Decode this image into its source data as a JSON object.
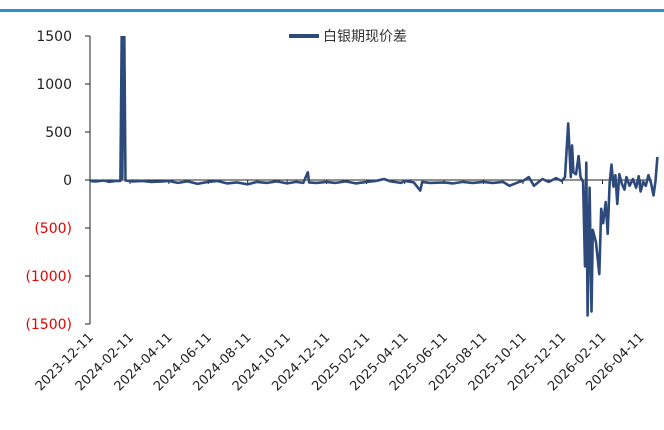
{
  "colors": {
    "top_rule": "#2f8fd6",
    "series": "#2e4a7a",
    "axis": "#222222",
    "tick_positive": "#222222",
    "tick_negative": "#e60000",
    "background": "#ffffff"
  },
  "chart_data": {
    "type": "line",
    "title": "",
    "xlabel": "",
    "ylabel": "",
    "ylim": [
      -1500,
      1500
    ],
    "grid": false,
    "legend_position": "top-center",
    "y_ticks": [
      {
        "value": 1500,
        "label": "1500"
      },
      {
        "value": 1000,
        "label": "1000"
      },
      {
        "value": 500,
        "label": "500"
      },
      {
        "value": 0,
        "label": "0"
      },
      {
        "value": -500,
        "label": "(500)"
      },
      {
        "value": -1000,
        "label": "(1000)"
      },
      {
        "value": -1500,
        "label": "(1500)"
      }
    ],
    "x_ticks": [
      "2023-12-11",
      "2024-02-11",
      "2024-04-11",
      "2024-06-11",
      "2024-08-11",
      "2024-10-11",
      "2024-12-11",
      "2025-02-11",
      "2025-04-11",
      "2025-06-11",
      "2025-08-11",
      "2025-10-11",
      "2025-12-11",
      "2026-02-11",
      "2026-04-11"
    ],
    "x_range": [
      "2023-12-11",
      "2026-05-11"
    ],
    "series": [
      {
        "name": "白银期现价差",
        "points": [
          [
            "2023-12-11",
            -10
          ],
          [
            "2023-12-20",
            -15
          ],
          [
            "2024-01-01",
            -5
          ],
          [
            "2024-01-10",
            -20
          ],
          [
            "2024-01-20",
            -8
          ],
          [
            "2024-01-27",
            -10
          ],
          [
            "2024-01-29",
            1500
          ],
          [
            "2024-01-30",
            20
          ],
          [
            "2024-02-01",
            1500
          ],
          [
            "2024-02-02",
            1500
          ],
          [
            "2024-02-04",
            -5
          ],
          [
            "2024-02-15",
            -15
          ],
          [
            "2024-03-01",
            -10
          ],
          [
            "2024-03-15",
            -20
          ],
          [
            "2024-04-01",
            -15
          ],
          [
            "2024-04-11",
            -10
          ],
          [
            "2024-04-25",
            -30
          ],
          [
            "2024-05-10",
            -15
          ],
          [
            "2024-05-25",
            -40
          ],
          [
            "2024-06-11",
            -20
          ],
          [
            "2024-06-25",
            -10
          ],
          [
            "2024-07-10",
            -35
          ],
          [
            "2024-07-25",
            -25
          ],
          [
            "2024-08-11",
            -45
          ],
          [
            "2024-08-25",
            -20
          ],
          [
            "2024-09-10",
            -30
          ],
          [
            "2024-09-25",
            -15
          ],
          [
            "2024-10-11",
            -35
          ],
          [
            "2024-10-25",
            -20
          ],
          [
            "2024-11-05",
            -30
          ],
          [
            "2024-11-12",
            80
          ],
          [
            "2024-11-14",
            -25
          ],
          [
            "2024-11-25",
            -30
          ],
          [
            "2024-12-11",
            -20
          ],
          [
            "2024-12-25",
            -30
          ],
          [
            "2025-01-10",
            -15
          ],
          [
            "2025-01-25",
            -35
          ],
          [
            "2025-02-11",
            -20
          ],
          [
            "2025-02-25",
            -10
          ],
          [
            "2025-03-10",
            10
          ],
          [
            "2025-03-20",
            -15
          ],
          [
            "2025-04-05",
            -30
          ],
          [
            "2025-04-11",
            -10
          ],
          [
            "2025-04-25",
            -25
          ],
          [
            "2025-05-05",
            -110
          ],
          [
            "2025-05-08",
            -20
          ],
          [
            "2025-05-20",
            -30
          ],
          [
            "2025-06-11",
            -25
          ],
          [
            "2025-06-25",
            -35
          ],
          [
            "2025-07-10",
            -20
          ],
          [
            "2025-07-25",
            -30
          ],
          [
            "2025-08-11",
            -20
          ],
          [
            "2025-08-25",
            -30
          ],
          [
            "2025-09-10",
            -20
          ],
          [
            "2025-09-20",
            -60
          ],
          [
            "2025-10-05",
            -20
          ],
          [
            "2025-10-11",
            -10
          ],
          [
            "2025-10-20",
            30
          ],
          [
            "2025-10-28",
            -60
          ],
          [
            "2025-11-10",
            10
          ],
          [
            "2025-11-20",
            -20
          ],
          [
            "2025-12-01",
            20
          ],
          [
            "2025-12-10",
            -10
          ],
          [
            "2025-12-15",
            30
          ],
          [
            "2025-12-20",
            590
          ],
          [
            "2025-12-24",
            30
          ],
          [
            "2025-12-26",
            360
          ],
          [
            "2025-12-28",
            80
          ],
          [
            "2026-01-01",
            60
          ],
          [
            "2026-01-05",
            250
          ],
          [
            "2026-01-08",
            30
          ],
          [
            "2026-01-12",
            -20
          ],
          [
            "2026-01-15",
            -900
          ],
          [
            "2026-01-17",
            180
          ],
          [
            "2026-01-19",
            -1410
          ],
          [
            "2026-01-22",
            -80
          ],
          [
            "2026-01-25",
            -1370
          ],
          [
            "2026-01-27",
            -520
          ],
          [
            "2026-02-01",
            -650
          ],
          [
            "2026-02-06",
            -980
          ],
          [
            "2026-02-09",
            -300
          ],
          [
            "2026-02-12",
            -450
          ],
          [
            "2026-02-16",
            -230
          ],
          [
            "2026-02-19",
            -560
          ],
          [
            "2026-02-22",
            -40
          ],
          [
            "2026-02-25",
            160
          ],
          [
            "2026-02-28",
            -70
          ],
          [
            "2026-03-03",
            50
          ],
          [
            "2026-03-06",
            -250
          ],
          [
            "2026-03-09",
            60
          ],
          [
            "2026-03-13",
            -40
          ],
          [
            "2026-03-17",
            -100
          ],
          [
            "2026-03-20",
            30
          ],
          [
            "2026-03-25",
            -60
          ],
          [
            "2026-03-30",
            10
          ],
          [
            "2026-04-04",
            -80
          ],
          [
            "2026-04-08",
            40
          ],
          [
            "2026-04-11",
            -120
          ],
          [
            "2026-04-15",
            -20
          ],
          [
            "2026-04-19",
            -60
          ],
          [
            "2026-04-23",
            50
          ],
          [
            "2026-04-27",
            -30
          ],
          [
            "2026-05-01",
            -160
          ],
          [
            "2026-05-04",
            -10
          ],
          [
            "2026-05-07",
            240
          ]
        ]
      }
    ]
  }
}
